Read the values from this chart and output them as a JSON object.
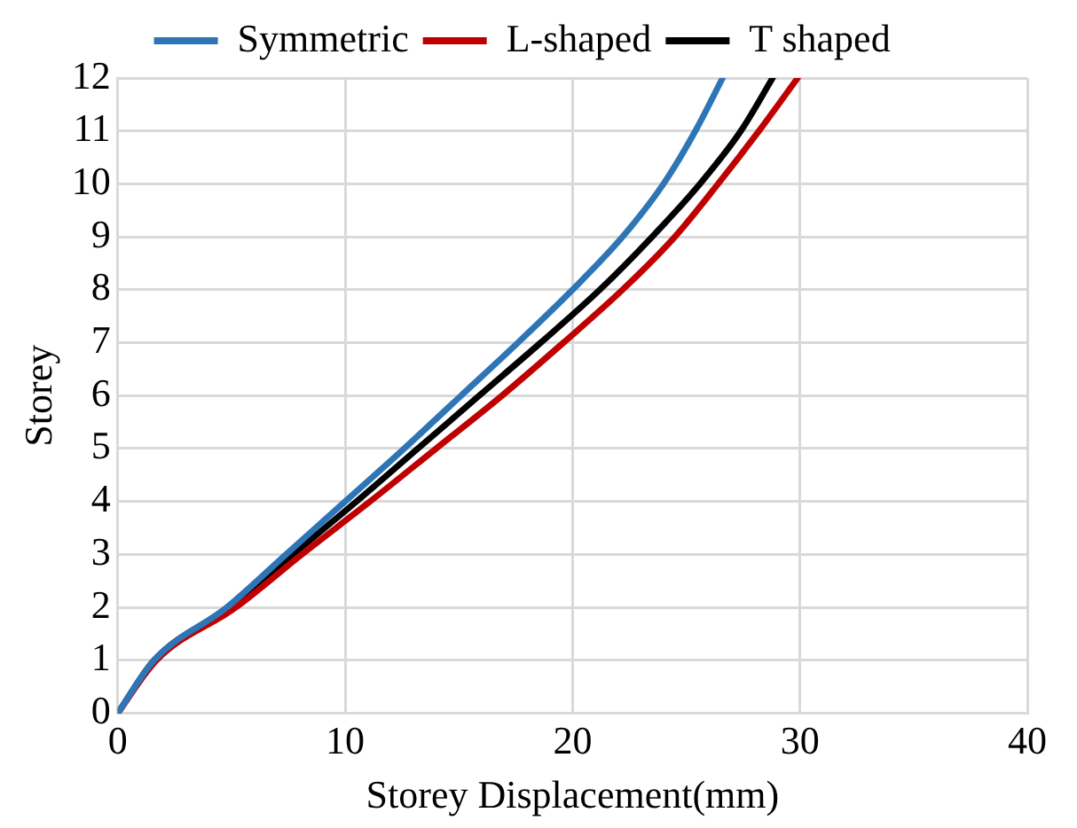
{
  "chart_data": {
    "type": "line",
    "xlabel": "Storey Displacement(mm)",
    "ylabel": "Storey",
    "series": [
      {
        "name": "Symmetric",
        "color": "#2e75b6",
        "x": [
          0,
          1.6,
          4.8,
          7.4,
          10.0,
          12.6,
          15.1,
          17.6,
          20.0,
          22.2,
          24.0,
          25.4,
          26.6
        ],
        "values": [
          0,
          1,
          2,
          3,
          4,
          5,
          6,
          7,
          8,
          9,
          10,
          11,
          12
        ]
      },
      {
        "name": "L-shaped",
        "color": "#c00000",
        "x": [
          0,
          1.7,
          5.2,
          8.1,
          11.1,
          14.0,
          16.9,
          19.6,
          22.2,
          24.5,
          26.4,
          28.2,
          29.9
        ],
        "values": [
          0,
          1,
          2,
          3,
          4,
          5,
          6,
          7,
          8,
          9,
          10,
          11,
          12
        ]
      },
      {
        "name": "T shaped",
        "color": "#000000",
        "x": [
          0,
          1.6,
          4.9,
          7.7,
          10.5,
          13.2,
          15.9,
          18.6,
          21.2,
          23.5,
          25.6,
          27.4,
          28.8
        ],
        "values": [
          0,
          1,
          2,
          3,
          4,
          5,
          6,
          7,
          8,
          9,
          10,
          11,
          12
        ]
      }
    ],
    "xlim": [
      0,
      40
    ],
    "xticks": [
      0,
      10,
      20,
      30,
      40
    ],
    "ylim": [
      0,
      12
    ],
    "yticks": [
      0,
      1,
      2,
      3,
      4,
      5,
      6,
      7,
      8,
      9,
      10,
      11,
      12
    ],
    "grid": true,
    "legend": "top",
    "marker": "none",
    "line_style": "solid"
  }
}
